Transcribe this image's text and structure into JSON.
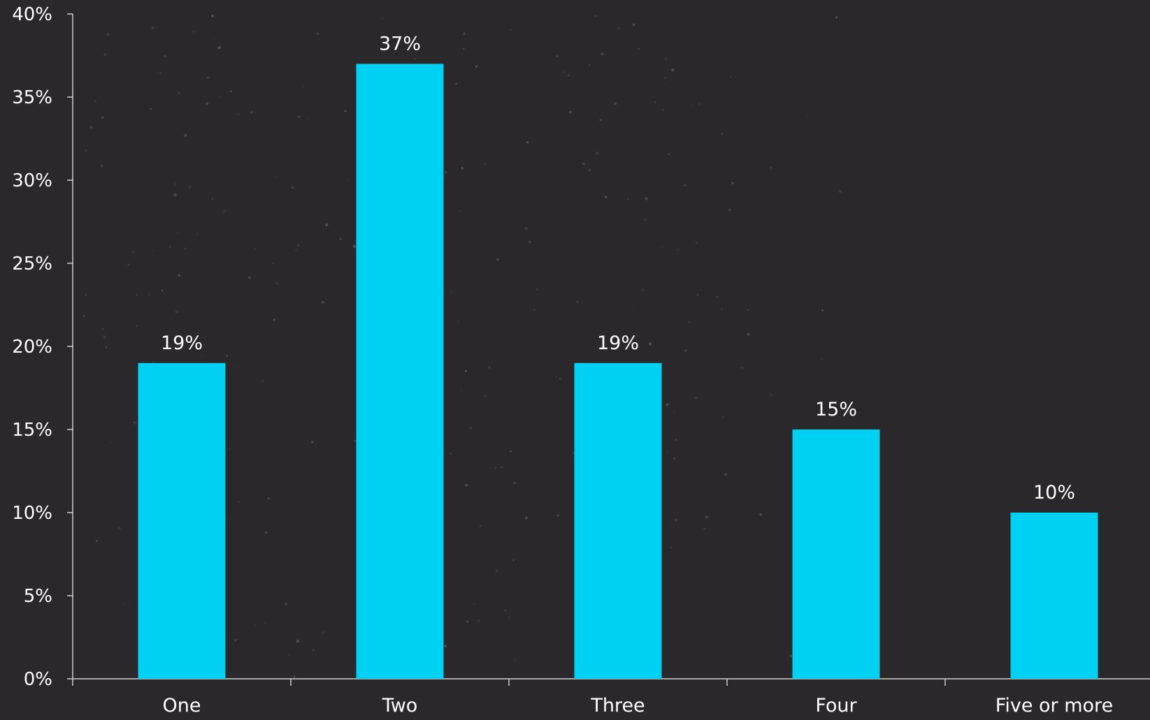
{
  "colors": {
    "background": "#2b282c",
    "bar": "#00d0f2",
    "axis": "#cfcfcf",
    "text": "#ffffff"
  },
  "chart_data": {
    "type": "bar",
    "title": "",
    "xlabel": "",
    "ylabel": "",
    "categories": [
      "One",
      "Two",
      "Three",
      "Four",
      "Five or more"
    ],
    "values": [
      19,
      37,
      19,
      15,
      10
    ],
    "value_labels": [
      "19%",
      "37%",
      "19%",
      "15%",
      "10%"
    ],
    "ylim": [
      0,
      40
    ],
    "yticks": [
      0,
      5,
      10,
      15,
      20,
      25,
      30,
      35,
      40
    ],
    "ytick_labels": [
      "0%",
      "5%",
      "10%",
      "15%",
      "20%",
      "25%",
      "30%",
      "35%",
      "40%"
    ],
    "grid": false,
    "legend": "none"
  }
}
